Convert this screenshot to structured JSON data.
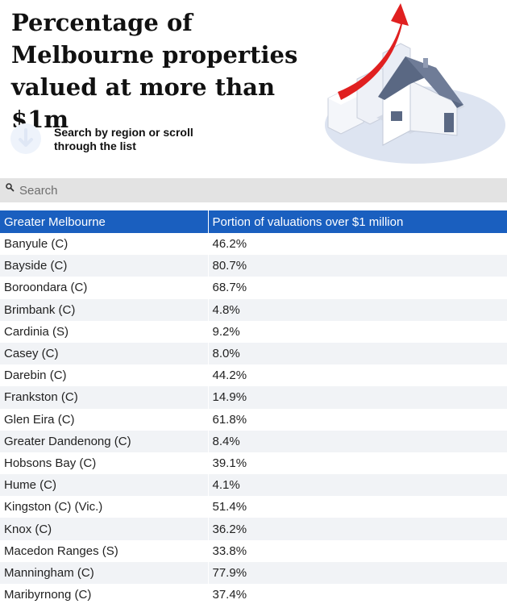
{
  "header": {
    "title": "Percentage of Melbourne properties valued at more than $1m",
    "hint": "Search by region or scroll through the list",
    "hint_icon": "down-arrow-circle-icon",
    "hero_image": "house-with-rising-arrow-illustration"
  },
  "search": {
    "placeholder": "Search",
    "icon": "search-icon"
  },
  "colors": {
    "header_bg": "#1a5fbf",
    "stripe": "#f1f3f6",
    "search_bg": "#e3e3e3",
    "arrow": "#e02020"
  },
  "table": {
    "columns": [
      "Greater Melbourne",
      "Portion of valuations over $1 million"
    ],
    "rows": [
      {
        "region": "Banyule (C)",
        "value": "46.2%"
      },
      {
        "region": "Bayside (C)",
        "value": "80.7%"
      },
      {
        "region": "Boroondara (C)",
        "value": "68.7%"
      },
      {
        "region": "Brimbank (C)",
        "value": "4.8%"
      },
      {
        "region": "Cardinia (S)",
        "value": "9.2%"
      },
      {
        "region": "Casey (C)",
        "value": "8.0%"
      },
      {
        "region": "Darebin (C)",
        "value": "44.2%"
      },
      {
        "region": "Frankston (C)",
        "value": "14.9%"
      },
      {
        "region": "Glen Eira (C)",
        "value": "61.8%"
      },
      {
        "region": "Greater Dandenong (C)",
        "value": "8.4%"
      },
      {
        "region": "Hobsons Bay (C)",
        "value": "39.1%"
      },
      {
        "region": "Hume (C)",
        "value": "4.1%"
      },
      {
        "region": "Kingston (C) (Vic.)",
        "value": "51.4%"
      },
      {
        "region": "Knox (C)",
        "value": "36.2%"
      },
      {
        "region": "Macedon Ranges (S)",
        "value": "33.8%"
      },
      {
        "region": "Manningham (C)",
        "value": "77.9%"
      },
      {
        "region": "Maribyrnong (C)",
        "value": "37.4%"
      }
    ]
  }
}
